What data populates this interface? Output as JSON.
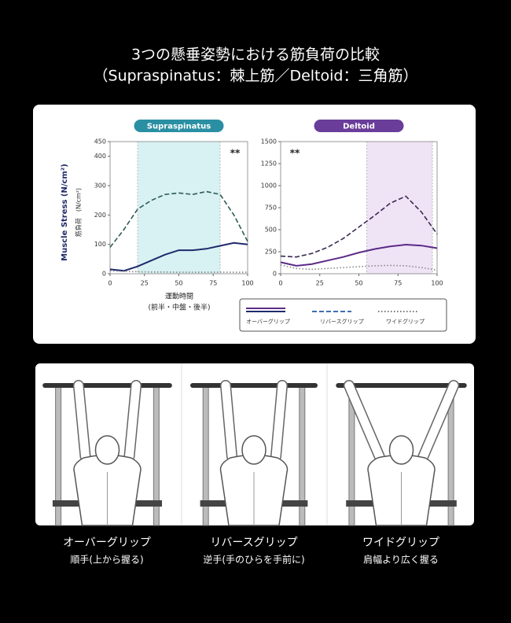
{
  "header": {
    "title": [
      "3つの懸垂姿勢における筋負荷の比較",
      "（Supraspinatus：棘上筋／Deltoid：三角筋）"
    ]
  },
  "axis_labels": {
    "y": "Muscle Stress (N/cm²)",
    "y_sub": "筋負荷　(N/cm²)",
    "x": [
      "運動時間",
      "(前半・中盤・後半)"
    ]
  },
  "legend": {
    "entries": [
      {
        "label": "オーバーグリップ",
        "color": "#1f2a6b",
        "style": "solid"
      },
      {
        "label": "リバースグリップ",
        "color": "#3d6fb0",
        "style": "dashed"
      },
      {
        "label": "ワイドグリップ",
        "color": "#777777",
        "style": "dotted"
      }
    ]
  },
  "chart_data": [
    {
      "type": "line",
      "title": "Supraspinatus",
      "title_color": "#2a8fa3",
      "annotation": "**",
      "highlight": [
        20,
        80
      ],
      "highlight_color": "#d8f1f3",
      "x": [
        0,
        10,
        20,
        30,
        40,
        50,
        60,
        70,
        80,
        90,
        100
      ],
      "xlim": [
        0,
        100
      ],
      "xticks": [
        0,
        25,
        50,
        75,
        100
      ],
      "ylim": [
        0,
        450
      ],
      "yticks": [
        0,
        100,
        200,
        300,
        400,
        450
      ],
      "series": [
        {
          "color": "#1f2a6b",
          "style": "solid",
          "values": [
            15,
            10,
            25,
            45,
            65,
            80,
            80,
            85,
            95,
            105,
            100
          ]
        },
        {
          "color": "#2f5c57",
          "style": "dashed",
          "values": [
            90,
            150,
            220,
            250,
            270,
            275,
            270,
            280,
            270,
            200,
            110
          ]
        },
        {
          "color": "#888888",
          "style": "dotted",
          "values": [
            10,
            8,
            7,
            6,
            6,
            5,
            5,
            5,
            5,
            5,
            5
          ]
        }
      ]
    },
    {
      "type": "line",
      "title": "Deltoid",
      "title_color": "#6a3d9a",
      "annotation": "**",
      "highlight": [
        55,
        97
      ],
      "highlight_color": "#efe3f6",
      "x": [
        0,
        10,
        20,
        30,
        40,
        50,
        60,
        70,
        80,
        90,
        100
      ],
      "xlim": [
        0,
        100
      ],
      "xticks": [
        0,
        25,
        50,
        75,
        100
      ],
      "ylim": [
        0,
        1500
      ],
      "yticks": [
        0,
        250,
        500,
        750,
        1000,
        1250,
        1500
      ],
      "series": [
        {
          "color": "#5b2a86",
          "style": "solid",
          "values": [
            130,
            90,
            110,
            150,
            190,
            240,
            280,
            310,
            330,
            320,
            290
          ]
        },
        {
          "color": "#3a2a50",
          "style": "dashed",
          "values": [
            200,
            190,
            230,
            300,
            400,
            530,
            660,
            800,
            880,
            700,
            450
          ]
        },
        {
          "color": "#888888",
          "style": "dotted",
          "values": [
            100,
            60,
            50,
            60,
            70,
            80,
            90,
            95,
            90,
            70,
            40
          ]
        }
      ]
    }
  ],
  "captions": [
    {
      "name": "オーバーグリップ",
      "desc": "順手(上から握る)"
    },
    {
      "name": "リバースグリップ",
      "desc": "逆手(手のひらを手前に)"
    },
    {
      "name": "ワイドグリップ",
      "desc": "肩幅より広く握る"
    }
  ]
}
